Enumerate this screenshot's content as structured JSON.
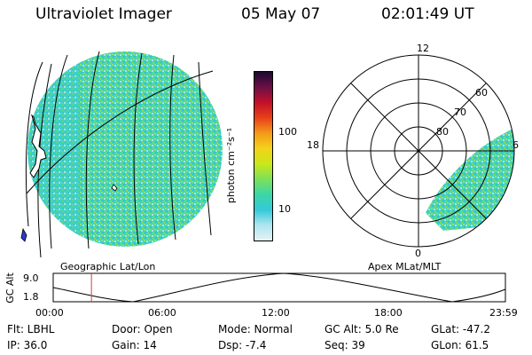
{
  "header": {
    "instrument": "Ultraviolet Imager",
    "date": "05 May 07",
    "time": "02:01:49 UT"
  },
  "colorbar": {
    "unit_label": "photon cm⁻²s⁻¹",
    "ticks": [
      {
        "label": "100",
        "value": 100
      },
      {
        "label": "10",
        "value": 10
      }
    ],
    "colors": [
      "#1a0a2e",
      "#6b1045",
      "#c2102a",
      "#e8401a",
      "#f39a1a",
      "#f3d21a",
      "#c9e81a",
      "#7ee05a",
      "#3cd6a6",
      "#34c9d9",
      "#aee6ee",
      "#e6f1f4"
    ]
  },
  "left_panel": {
    "label": "Geographic Lat/Lon"
  },
  "polar_plot": {
    "label": "Apex MLat/MLT",
    "mlt_labels": [
      "12",
      "18",
      "6",
      "0"
    ],
    "lat_labels": [
      "60",
      "70",
      "80"
    ]
  },
  "altitude_plot": {
    "axis_label": "GC Alt",
    "y_labels": [
      "9.0",
      "1.8"
    ],
    "x_labels": [
      "00:00",
      "06:00",
      "12:00",
      "18:00",
      "23:59"
    ],
    "current_time_marker_hours": 2.03
  },
  "info": {
    "flt": "Flt: LBHL",
    "ip": "IP: 36.0",
    "door": "Door: Open",
    "gain": "Gain: 14",
    "mode": "Mode: Normal",
    "dsp": "Dsp:   -7.4",
    "gc_alt": "GC Alt: 5.0 Re",
    "seq": "Seq: 39",
    "glat": "GLat: -47.2",
    "glon": "GLon:  61.5"
  }
}
